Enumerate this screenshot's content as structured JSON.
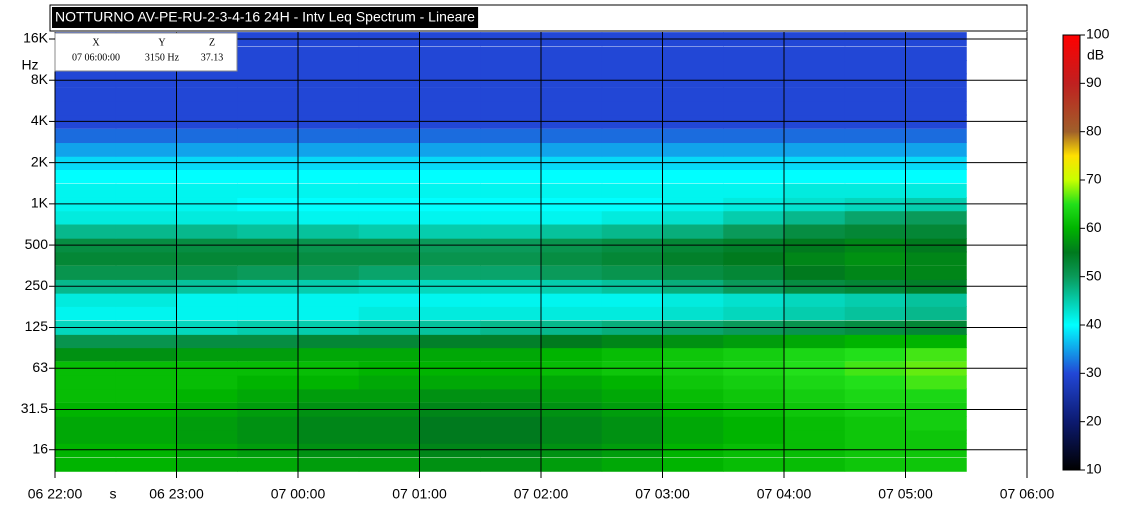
{
  "chart_data": {
    "type": "heatmap",
    "title": "NOTTURNO AV-PE-RU-2-3-4-16 24H - Intv Leq Spectrum - Lineare",
    "y_unit": "Hz",
    "x_unit": "s",
    "z_unit": "dB",
    "readout": {
      "headers": [
        "X",
        "Y",
        "Z"
      ],
      "values": [
        "07 06:00:00",
        "3150 Hz",
        "37.13"
      ]
    },
    "xlim": [
      0,
      8
    ],
    "xticks": [
      {
        "value": 0,
        "label": "06 22:00"
      },
      {
        "value": 1,
        "label": "06 23:00"
      },
      {
        "value": 2,
        "label": "07 00:00"
      },
      {
        "value": 3,
        "label": "07 01:00"
      },
      {
        "value": 4,
        "label": "07 02:00"
      },
      {
        "value": 5,
        "label": "07 03:00"
      },
      {
        "value": 6,
        "label": "07 04:00"
      },
      {
        "value": 7,
        "label": "07 05:00"
      },
      {
        "value": 8,
        "label": "07 06:00"
      }
    ],
    "log_y": true,
    "ylim": [
      11,
      18000
    ],
    "yticks": [
      16,
      31.5,
      63,
      125,
      250,
      500,
      {
        "value": 1000,
        "label": "1K"
      },
      {
        "value": 2000,
        "label": "2K"
      },
      {
        "value": 4000,
        "label": "4K"
      },
      {
        "value": 8000,
        "label": "8K"
      },
      {
        "value": 16000,
        "label": "16K"
      }
    ],
    "zlim": [
      10,
      100
    ],
    "zticks": [
      10,
      20,
      30,
      40,
      50,
      60,
      70,
      80,
      90,
      100
    ],
    "colorscale": [
      [
        10,
        "#000000"
      ],
      [
        20,
        "#0c1a70"
      ],
      [
        30,
        "#2247d6"
      ],
      [
        40,
        "#00ffff"
      ],
      [
        50,
        "#0a9a5a"
      ],
      [
        55,
        "#007a1e"
      ],
      [
        60,
        "#00b400"
      ],
      [
        65,
        "#22e01a"
      ],
      [
        70,
        "#c8ff00"
      ],
      [
        75,
        "#ffe000"
      ],
      [
        80,
        "#a0602a"
      ],
      [
        90,
        "#c02020"
      ],
      [
        100,
        "#ff0000"
      ]
    ],
    "x": [
      0,
      0.5,
      1,
      1.5,
      2,
      2.5,
      3,
      3.5,
      4,
      4.5,
      5,
      5.5,
      6,
      6.5,
      7
    ],
    "x_step": 0.5,
    "bands": [
      12.5,
      16,
      20,
      25,
      31.5,
      40,
      50,
      63,
      80,
      100,
      125,
      160,
      200,
      250,
      315,
      400,
      500,
      630,
      800,
      1000,
      1250,
      1600,
      2000,
      2500,
      3150,
      4000,
      5000,
      6300,
      8000,
      10000,
      12500,
      16000
    ],
    "z": [
      [
        60,
        60,
        59,
        59,
        58,
        58,
        57,
        57,
        58,
        59,
        60,
        61,
        61,
        62,
        62
      ],
      [
        60,
        60,
        59,
        58,
        57,
        57,
        56,
        56,
        57,
        58,
        60,
        61,
        61,
        62,
        62
      ],
      [
        59,
        59,
        58,
        57,
        56,
        56,
        55,
        55,
        56,
        57,
        59,
        60,
        61,
        62,
        62
      ],
      [
        59,
        59,
        58,
        57,
        56,
        56,
        55,
        55,
        56,
        57,
        59,
        60,
        61,
        62,
        63
      ],
      [
        60,
        60,
        59,
        58,
        57,
        57,
        56,
        56,
        57,
        58,
        60,
        61,
        62,
        63,
        63
      ],
      [
        61,
        61,
        60,
        59,
        58,
        58,
        57,
        57,
        58,
        59,
        61,
        62,
        63,
        64,
        64
      ],
      [
        61,
        61,
        61,
        60,
        60,
        59,
        59,
        59,
        59,
        60,
        62,
        63,
        64,
        65,
        66
      ],
      [
        61,
        61,
        61,
        61,
        61,
        60,
        60,
        60,
        61,
        62,
        63,
        64,
        65,
        66,
        67
      ],
      [
        57,
        57,
        58,
        58,
        59,
        59,
        59,
        59,
        60,
        61,
        62,
        63,
        64,
        65,
        66
      ],
      [
        51,
        51,
        52,
        52,
        53,
        53,
        54,
        54,
        55,
        56,
        57,
        58,
        59,
        60,
        60
      ],
      [
        44,
        44,
        44,
        45,
        45,
        46,
        46,
        47,
        47,
        48,
        49,
        50,
        51,
        52,
        53
      ],
      [
        41,
        41,
        41,
        41,
        41,
        42,
        42,
        42,
        42,
        42,
        43,
        44,
        45,
        46,
        47
      ],
      [
        42,
        42,
        41,
        41,
        41,
        41,
        41,
        41,
        41,
        41,
        42,
        43,
        44,
        45,
        46
      ],
      [
        47,
        47,
        46,
        45,
        45,
        44,
        44,
        44,
        45,
        46,
        48,
        50,
        52,
        53,
        54
      ],
      [
        51,
        51,
        51,
        50,
        50,
        49,
        49,
        49,
        50,
        51,
        52,
        53,
        55,
        56,
        56
      ],
      [
        53,
        53,
        53,
        53,
        52,
        52,
        51,
        51,
        52,
        53,
        54,
        55,
        56,
        57,
        56
      ],
      [
        52,
        52,
        52,
        52,
        51,
        51,
        50,
        50,
        51,
        52,
        53,
        54,
        55,
        56,
        55
      ],
      [
        47,
        47,
        47,
        46,
        46,
        45,
        45,
        45,
        46,
        47,
        48,
        50,
        52,
        53,
        53
      ],
      [
        42,
        42,
        42,
        42,
        41,
        41,
        41,
        41,
        41,
        42,
        43,
        45,
        47,
        49,
        50
      ],
      [
        41,
        41,
        41,
        40,
        40,
        40,
        40,
        40,
        40,
        40,
        41,
        42,
        43,
        44,
        45
      ],
      [
        41,
        41,
        41,
        41,
        41,
        41,
        41,
        41,
        41,
        41,
        41,
        41,
        42,
        42,
        42
      ],
      [
        40,
        40,
        40,
        40,
        40,
        40,
        40,
        40,
        40,
        40,
        40,
        40,
        40,
        40,
        40
      ],
      [
        38,
        38,
        38,
        38,
        38,
        38,
        38,
        38,
        38,
        38,
        38,
        38,
        38,
        38,
        38
      ],
      [
        35,
        35,
        35,
        35,
        35,
        35,
        35,
        35,
        35,
        35,
        35,
        35,
        35,
        35,
        35
      ],
      [
        32,
        32,
        32,
        32,
        32,
        32,
        32,
        32,
        32,
        32,
        32,
        32,
        32,
        32,
        32
      ],
      [
        30,
        30,
        30,
        30,
        30,
        30,
        30,
        30,
        30,
        30,
        30,
        30,
        30,
        30,
        30
      ],
      [
        30,
        30,
        30,
        30,
        30,
        30,
        30,
        30,
        30,
        30,
        30,
        30,
        30,
        30,
        30
      ],
      [
        30,
        30,
        30,
        30,
        30,
        30,
        30,
        30,
        30,
        30,
        30,
        30,
        30,
        30,
        30
      ],
      [
        30,
        30,
        30,
        30,
        30,
        30,
        30,
        30,
        30,
        30,
        30,
        30,
        30,
        30,
        30
      ],
      [
        30,
        30,
        30,
        30,
        30,
        30,
        30,
        30,
        30,
        30,
        30,
        30,
        30,
        30,
        30
      ],
      [
        30,
        30,
        30,
        30,
        30,
        30,
        30,
        30,
        30,
        30,
        30,
        30,
        30,
        30,
        30
      ],
      [
        30,
        30,
        30,
        30,
        30,
        30,
        30,
        30,
        30,
        30,
        30,
        30,
        30,
        30,
        30
      ]
    ],
    "grid": true
  }
}
